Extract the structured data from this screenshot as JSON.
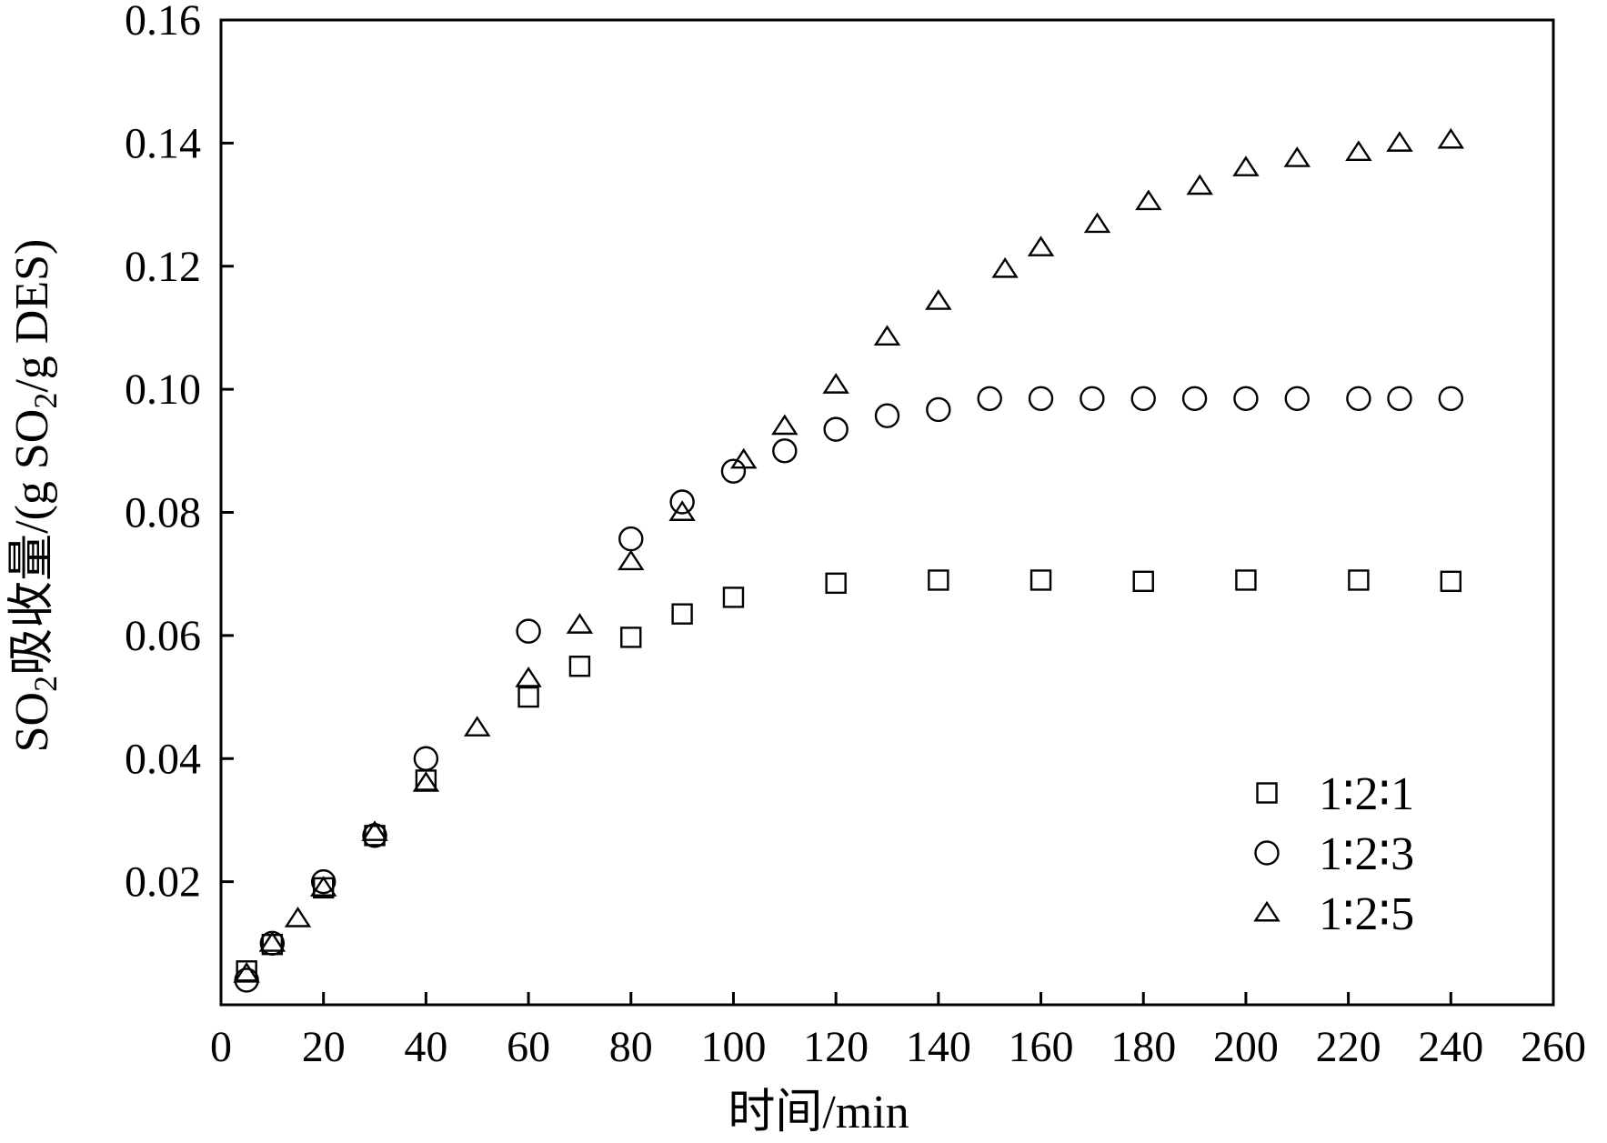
{
  "chart_data": {
    "type": "scatter",
    "xlabel": "时间/min",
    "ylabel_parts": [
      "SO",
      "2",
      "吸收量/(g SO",
      "2",
      "/g DES)"
    ],
    "xlim": [
      0,
      260
    ],
    "ylim": [
      0,
      0.16
    ],
    "x_ticks": [
      0,
      20,
      40,
      60,
      80,
      100,
      120,
      140,
      160,
      180,
      200,
      220,
      240,
      260
    ],
    "x_tick_labels": [
      "0",
      "20",
      "40",
      "60",
      "80",
      "100",
      "120",
      "140",
      "160",
      "180",
      "200",
      "220",
      "240",
      "260"
    ],
    "y_ticks": [
      0.02,
      0.04,
      0.06,
      0.08,
      0.1,
      0.12,
      0.14,
      0.16
    ],
    "y_tick_labels": [
      "0.02",
      "0.04",
      "0.06",
      "0.08",
      "0.10",
      "0.12",
      "0.14",
      "0.16"
    ],
    "grid": false,
    "legend_position": "bottom-right",
    "series": [
      {
        "name": "1∶2∶1",
        "marker": "square",
        "points": [
          [
            5,
            0.0055
          ],
          [
            10,
            0.0098
          ],
          [
            20,
            0.019
          ],
          [
            30,
            0.0275
          ],
          [
            40,
            0.0365
          ],
          [
            60,
            0.05
          ],
          [
            70,
            0.055
          ],
          [
            80,
            0.0597
          ],
          [
            90,
            0.0635
          ],
          [
            100,
            0.0662
          ],
          [
            120,
            0.0685
          ],
          [
            140,
            0.069
          ],
          [
            160,
            0.069
          ],
          [
            180,
            0.0688
          ],
          [
            200,
            0.069
          ],
          [
            222,
            0.069
          ],
          [
            240,
            0.0688
          ]
        ]
      },
      {
        "name": "1∶2∶3",
        "marker": "circle",
        "points": [
          [
            5,
            0.004
          ],
          [
            10,
            0.01
          ],
          [
            20,
            0.02
          ],
          [
            30,
            0.0275
          ],
          [
            40,
            0.04
          ],
          [
            60,
            0.0607
          ],
          [
            80,
            0.0757
          ],
          [
            90,
            0.0817
          ],
          [
            100,
            0.0867
          ],
          [
            110,
            0.09
          ],
          [
            120,
            0.0935
          ],
          [
            130,
            0.0957
          ],
          [
            140,
            0.0967
          ],
          [
            150,
            0.0985
          ],
          [
            160,
            0.0985
          ],
          [
            170,
            0.0985
          ],
          [
            180,
            0.0985
          ],
          [
            190,
            0.0985
          ],
          [
            200,
            0.0985
          ],
          [
            210,
            0.0985
          ],
          [
            222,
            0.0985
          ],
          [
            230,
            0.0985
          ],
          [
            240,
            0.0985
          ]
        ]
      },
      {
        "name": "1∶2∶5",
        "marker": "triangle",
        "points": [
          [
            5,
            0.005
          ],
          [
            10,
            0.01
          ],
          [
            15,
            0.014
          ],
          [
            20,
            0.019
          ],
          [
            30,
            0.028
          ],
          [
            40,
            0.036
          ],
          [
            50,
            0.045
          ],
          [
            60,
            0.053
          ],
          [
            70,
            0.0617
          ],
          [
            80,
            0.072
          ],
          [
            90,
            0.08
          ],
          [
            102,
            0.0885
          ],
          [
            110,
            0.094
          ],
          [
            120,
            0.1007
          ],
          [
            130,
            0.1085
          ],
          [
            140,
            0.1143
          ],
          [
            153,
            0.1195
          ],
          [
            160,
            0.123
          ],
          [
            171,
            0.1268
          ],
          [
            181,
            0.1305
          ],
          [
            191,
            0.133
          ],
          [
            200,
            0.136
          ],
          [
            210,
            0.1375
          ],
          [
            222,
            0.1385
          ],
          [
            230,
            0.14
          ],
          [
            240,
            0.1405
          ]
        ]
      }
    ]
  }
}
